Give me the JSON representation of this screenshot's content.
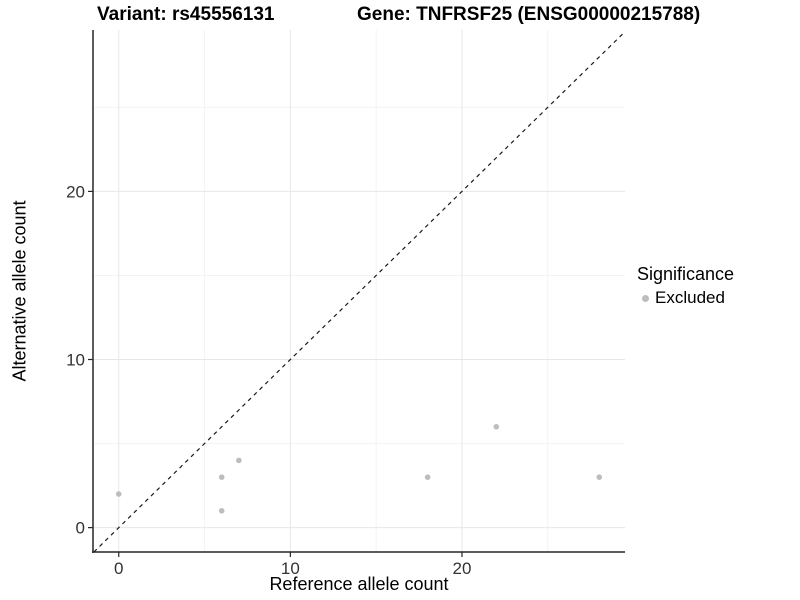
{
  "header": {
    "variant_title": "Variant: rs45556131",
    "gene_title": "Gene: TNFRSF25 (ENSG00000215788)"
  },
  "legend": {
    "title": "Significance",
    "items": [
      {
        "label": "Excluded",
        "color": "#bdbdbd"
      }
    ]
  },
  "chart_data": {
    "type": "scatter",
    "title": "Variant: rs45556131 | Gene: TNFRSF25 (ENSG00000215788)",
    "xlabel": "Reference allele count",
    "ylabel": "Alternative allele count",
    "xlim": [
      -1.5,
      29.5
    ],
    "ylim": [
      -1.45,
      29.6
    ],
    "x_ticks": [
      0,
      10,
      20
    ],
    "y_ticks": [
      0,
      10,
      20
    ],
    "x_minor_gridlines": [
      5,
      15,
      25
    ],
    "y_minor_gridlines": [
      5,
      15,
      25
    ],
    "grid": true,
    "legend_position": "right",
    "legend_title": "Significance",
    "identity_line": {
      "style": "dashed",
      "color": "#1a1a1a"
    },
    "series": [
      {
        "name": "Excluded",
        "color": "#bdbdbd",
        "points": [
          [
            0,
            2
          ],
          [
            6,
            1
          ],
          [
            6,
            3
          ],
          [
            7,
            4
          ],
          [
            18,
            3
          ],
          [
            22,
            6
          ],
          [
            28,
            3
          ]
        ]
      }
    ]
  },
  "colors": {
    "major_grid": "#e7e7e7",
    "minor_grid": "#f3f3f3",
    "axis_line": "#262626",
    "tick_text": "#333333"
  }
}
